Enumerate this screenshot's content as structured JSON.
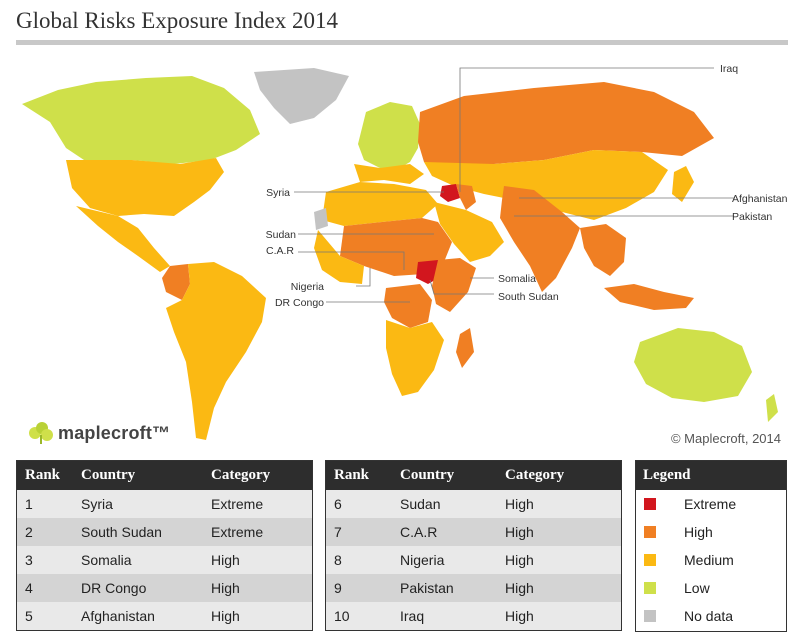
{
  "title": "Global Risks Exposure Index 2014",
  "logo": {
    "text": "maplecroft™"
  },
  "copyright": "© Maplecroft, 2014",
  "map_labels": {
    "iraq": "Iraq",
    "syria": "Syria",
    "sudan": "Sudan",
    "car": "C.A.R",
    "nigeria": "Nigeria",
    "drcongo": "DR Congo",
    "somalia": "Somalia",
    "south_sudan": "South Sudan",
    "afghanistan": "Afghanistan",
    "pakistan": "Pakistan"
  },
  "colors": {
    "extreme": "#d2161e",
    "high": "#f07f23",
    "medium": "#fbb913",
    "low": "#cfe04a",
    "nodata": "#c3c3c3"
  },
  "table_headers": {
    "rank": "Rank",
    "country": "Country",
    "category": "Category"
  },
  "table_left": [
    {
      "rank": "1",
      "country": "Syria",
      "category": "Extreme"
    },
    {
      "rank": "2",
      "country": "South Sudan",
      "category": "Extreme"
    },
    {
      "rank": "3",
      "country": "Somalia",
      "category": "High"
    },
    {
      "rank": "4",
      "country": "DR Congo",
      "category": "High"
    },
    {
      "rank": "5",
      "country": "Afghanistan",
      "category": "High"
    }
  ],
  "table_right": [
    {
      "rank": "6",
      "country": "Sudan",
      "category": "High"
    },
    {
      "rank": "7",
      "country": "C.A.R",
      "category": "High"
    },
    {
      "rank": "8",
      "country": "Nigeria",
      "category": "High"
    },
    {
      "rank": "9",
      "country": "Pakistan",
      "category": "High"
    },
    {
      "rank": "10",
      "country": "Iraq",
      "category": "High"
    }
  ],
  "legend": {
    "title": "Legend",
    "items": [
      {
        "label": "Extreme",
        "color": "#d2161e"
      },
      {
        "label": "High",
        "color": "#f07f23"
      },
      {
        "label": "Medium",
        "color": "#fbb913"
      },
      {
        "label": "Low",
        "color": "#cfe04a"
      },
      {
        "label": "No data",
        "color": "#c3c3c3"
      }
    ]
  }
}
